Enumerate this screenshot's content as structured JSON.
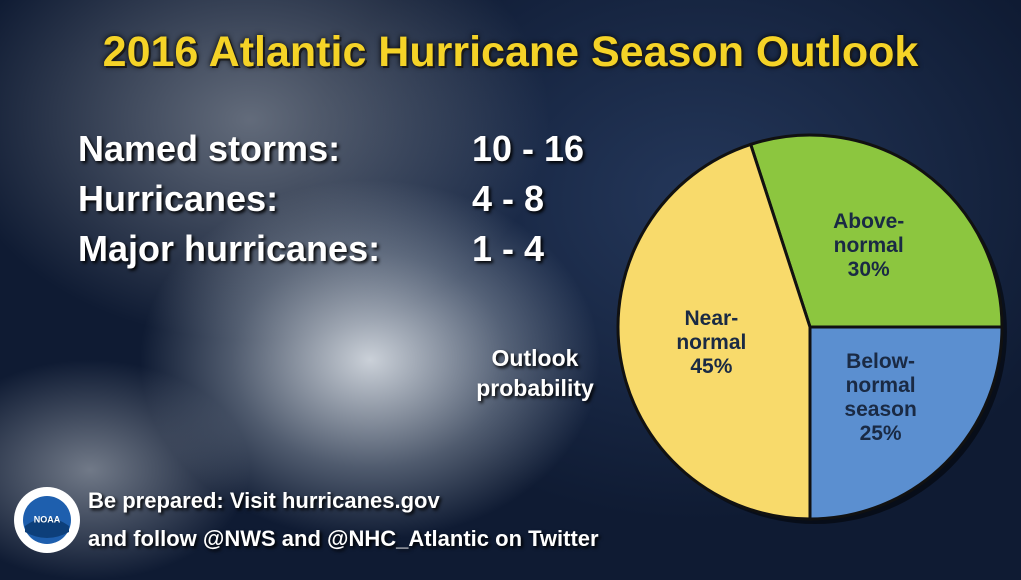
{
  "title": "2016 Atlantic Hurricane Season Outlook",
  "stats": [
    {
      "label": "Named storms:",
      "value": "10 - 16"
    },
    {
      "label": "Hurricanes:",
      "value": "4 - 8"
    },
    {
      "label": "Major hurricanes:",
      "value": "1 - 4"
    }
  ],
  "chart_data": {
    "type": "pie",
    "annotation": "Outlook probability",
    "categories": [
      "Above-normal",
      "Below-normal season",
      "Near-normal"
    ],
    "values": [
      30,
      25,
      45
    ],
    "value_labels": [
      "30%",
      "25%",
      "45%"
    ],
    "colors": [
      "#8cc63f",
      "#5b8fd0",
      "#f8da6b"
    ]
  },
  "footer": {
    "lines": [
      "Be prepared: Visit hurricanes.gov",
      "and follow @NWS and @NHC_Atlantic on Twitter"
    ]
  },
  "logo": "NOAA"
}
